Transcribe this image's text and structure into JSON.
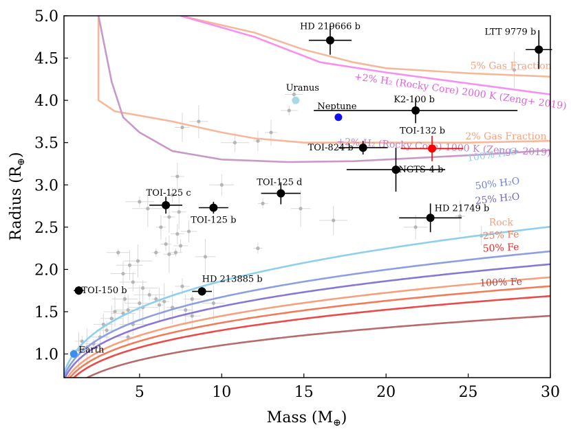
{
  "chart_data": {
    "type": "scatter",
    "xlabel": "Mass (M",
    "xlabel_sub": "⊕",
    "xlabel_close": ")",
    "ylabel": "Radius (R",
    "ylabel_sub": "⊕",
    "ylabel_close": ")",
    "xlim": [
      0.4,
      30
    ],
    "ylim": [
      0.72,
      5.0
    ],
    "xticks": [
      5,
      10,
      15,
      20,
      25,
      30
    ],
    "yticks": [
      1.0,
      1.5,
      2.0,
      2.5,
      3.0,
      3.5,
      4.0,
      4.5,
      5.0
    ],
    "xtick_labels": [
      "5",
      "10",
      "15",
      "20",
      "25",
      "30"
    ],
    "ytick_labels": [
      "1.0",
      "1.5",
      "2.0",
      "2.5",
      "3.0",
      "3.5",
      "4.0",
      "4.5",
      "5.0"
    ],
    "composition_curves": [
      {
        "name": "100% H2O",
        "label": "100% H₂O",
        "color": "#8ecfee",
        "a": 1.0,
        "p": 0.27
      },
      {
        "name": "50% H2O",
        "label": "50% H₂O",
        "color": "#8c9fe0",
        "a": 0.93,
        "p": 0.255
      },
      {
        "name": "25% H2O",
        "label": "25% H₂O",
        "color": "#8a76d4",
        "a": 0.875,
        "p": 0.252
      },
      {
        "name": "Rock",
        "label": "Rock",
        "color": "#f5a17e",
        "a": 0.815,
        "p": 0.25
      },
      {
        "name": "25% Fe",
        "label": "25% Fe",
        "color": "#f07c5a",
        "a": 0.77,
        "p": 0.25
      },
      {
        "name": "50% Fe",
        "label": "50% Fe",
        "color": "#ea4a4a",
        "a": 0.72,
        "p": 0.25
      },
      {
        "name": "100% Fe",
        "label": "100% Fe",
        "color": "#b86a6a",
        "a": 0.62,
        "p": 0.25
      }
    ],
    "gas_curves": [
      {
        "name": "2% Gas Fraction",
        "label": "2% Gas Fraction",
        "color": "#f5b89a",
        "points": [
          [
            2.5,
            5.0
          ],
          [
            2.5,
            4.0
          ],
          [
            3.5,
            3.87
          ],
          [
            5,
            3.82
          ],
          [
            7,
            3.75
          ],
          [
            10,
            3.62
          ],
          [
            12,
            3.55
          ],
          [
            15,
            3.5
          ],
          [
            20,
            3.5
          ],
          [
            25,
            3.5
          ],
          [
            30,
            3.52
          ]
        ]
      },
      {
        "name": "5% Gas Fraction",
        "label": "5% Gas Fraction",
        "color": "#f5b89a",
        "points": [
          [
            7.5,
            5.0
          ],
          [
            12,
            4.8
          ],
          [
            15,
            4.6
          ],
          [
            18,
            4.45
          ],
          [
            20,
            4.38
          ],
          [
            25,
            4.32
          ],
          [
            30,
            4.28
          ]
        ]
      },
      {
        "name": "+2% H2 (Rocky Core) 2000 K (Zeng+ 2019)",
        "label": "+2% H₂ (Rocky Core) 2000 K (Zeng+ 2019)",
        "color": "#f78ff0",
        "points": [
          [
            7.5,
            5.0
          ],
          [
            12,
            4.75
          ],
          [
            14,
            4.6
          ],
          [
            16,
            4.45
          ],
          [
            20,
            4.33
          ],
          [
            25,
            4.2
          ],
          [
            30,
            4.07
          ]
        ]
      },
      {
        "name": "+2% H2 (Rocky Core) 1000 K (Zeng+ 2019)",
        "label": "+2% H₂ (Rocky Core) 1000 K (Zeng+ 2019)",
        "color": "#c998c8",
        "points": [
          [
            2.5,
            5.0
          ],
          [
            3.3,
            4.22
          ],
          [
            4.0,
            3.8
          ],
          [
            5.0,
            3.62
          ],
          [
            7.0,
            3.4
          ],
          [
            10,
            3.3
          ],
          [
            14,
            3.27
          ],
          [
            18,
            3.28
          ],
          [
            22,
            3.32
          ],
          [
            26,
            3.36
          ],
          [
            30,
            3.41
          ]
        ]
      }
    ],
    "named_planets": [
      {
        "name": "HD 219666 b",
        "x": 16.6,
        "y": 4.71,
        "xerr": 1.3,
        "yerr": 0.17,
        "color": "#000000"
      },
      {
        "name": "LTT 9779 b",
        "x": 29.3,
        "y": 4.6,
        "xerr": 0.8,
        "yerr": 0.23,
        "color": "#000000"
      },
      {
        "name": "K2-100 b",
        "x": 21.8,
        "y": 3.88,
        "xerr": 6.2,
        "yerr": 0.15,
        "color": "#000000"
      },
      {
        "name": "TOI-132 b",
        "x": 22.8,
        "y": 3.43,
        "xerr": 1.9,
        "yerr": 0.15,
        "color": "#ff0000"
      },
      {
        "name": "TOI-824 b",
        "x": 18.6,
        "y": 3.44,
        "xerr": 1.5,
        "yerr": 0.08,
        "color": "#000000"
      },
      {
        "name": "NGTS-4 b",
        "x": 20.6,
        "y": 3.18,
        "xerr": 3.0,
        "yerr": 0.26,
        "color": "#000000"
      },
      {
        "name": "TOI-125 c",
        "x": 6.6,
        "y": 2.76,
        "xerr": 1.0,
        "yerr": 0.1,
        "color": "#000000"
      },
      {
        "name": "TOI-125 b",
        "x": 9.5,
        "y": 2.73,
        "xerr": 0.9,
        "yerr": 0.07,
        "color": "#000000"
      },
      {
        "name": "TOI-125 d",
        "x": 13.6,
        "y": 2.9,
        "xerr": 1.2,
        "yerr": 0.13,
        "color": "#000000"
      },
      {
        "name": "HD 21749 b",
        "x": 22.7,
        "y": 2.61,
        "xerr": 1.9,
        "yerr": 0.17,
        "color": "#000000"
      },
      {
        "name": "TOI-150 b",
        "x": 1.3,
        "y": 1.75,
        "xerr": 0.3,
        "yerr": 0.05,
        "color": "#000000"
      },
      {
        "name": "HD 213885 b",
        "x": 8.8,
        "y": 1.74,
        "xerr": 0.6,
        "yerr": 0.05,
        "color": "#000000"
      }
    ],
    "solar_system": [
      {
        "name": "Uranus",
        "x": 14.5,
        "y": 4.0,
        "color": "#a8d8e8"
      },
      {
        "name": "Neptune",
        "x": 17.1,
        "y": 3.8,
        "color": "#1010ee"
      },
      {
        "name": "Earth",
        "x": 1.0,
        "y": 1.0,
        "color": "#3b8df0"
      }
    ],
    "background_planets": [
      [
        14.4,
        4.07
      ],
      [
        14.1,
        3.88
      ],
      [
        13.0,
        3.62
      ],
      [
        10.8,
        3.5
      ],
      [
        7.6,
        3.68
      ],
      [
        8.6,
        3.75
      ],
      [
        12.2,
        3.52
      ],
      [
        21.8,
        2.5
      ],
      [
        24.5,
        2.63
      ],
      [
        25.8,
        2.4
      ],
      [
        16.8,
        2.58
      ],
      [
        14.8,
        2.72
      ],
      [
        12.5,
        2.78
      ],
      [
        10.0,
        3.0
      ],
      [
        7.3,
        3.1
      ],
      [
        7.0,
        2.88
      ],
      [
        6.3,
        2.5
      ],
      [
        5.0,
        2.8
      ],
      [
        5.5,
        2.72
      ],
      [
        8.0,
        2.45
      ],
      [
        7.3,
        2.42
      ],
      [
        7.5,
        2.28
      ],
      [
        7.2,
        2.2
      ],
      [
        6.8,
        2.18
      ],
      [
        6.6,
        2.3
      ],
      [
        6.0,
        2.2
      ],
      [
        12.2,
        2.25
      ],
      [
        9.0,
        2.15
      ],
      [
        4.9,
        2.1
      ],
      [
        4.4,
        2.05
      ],
      [
        3.7,
        2.2
      ],
      [
        4.0,
        1.95
      ],
      [
        4.6,
        1.85
      ],
      [
        5.2,
        1.78
      ],
      [
        5.6,
        1.7
      ],
      [
        6.0,
        1.65
      ],
      [
        6.5,
        1.62
      ],
      [
        5.0,
        1.6
      ],
      [
        4.1,
        1.65
      ],
      [
        3.5,
        1.5
      ],
      [
        4.0,
        1.48
      ],
      [
        4.3,
        1.52
      ],
      [
        4.6,
        1.35
      ],
      [
        5.2,
        1.55
      ],
      [
        6.2,
        1.58
      ],
      [
        7.0,
        1.55
      ],
      [
        7.8,
        1.52
      ],
      [
        8.2,
        1.45
      ],
      [
        9.5,
        1.6
      ],
      [
        3.0,
        1.28
      ],
      [
        2.6,
        1.2
      ],
      [
        2.2,
        1.12
      ],
      [
        1.8,
        1.08
      ],
      [
        1.5,
        1.15
      ],
      [
        1.3,
        1.05
      ],
      [
        2.8,
        1.35
      ],
      [
        3.3,
        1.42
      ],
      [
        7.6,
        1.8
      ],
      [
        8.2,
        1.65
      ],
      [
        4.3,
        1.2
      ],
      [
        27.8,
        4.36
      ],
      [
        6.8,
        2.62
      ],
      [
        7.4,
        2.68
      ]
    ],
    "annotations": [
      {
        "text": "100% H₂O",
        "x": 26.5,
        "y": 3.32,
        "color": "#8ecfee",
        "size": 15,
        "rotate": -8
      },
      {
        "text": "50% H₂O",
        "x": 26.8,
        "y": 2.98,
        "color": "#6f84d8",
        "size": 15,
        "rotate": -7
      },
      {
        "text": "25% H₂O",
        "x": 26.8,
        "y": 2.8,
        "color": "#7a62c8",
        "size": 15,
        "rotate": -6
      },
      {
        "text": "Rock",
        "x": 27.0,
        "y": 2.52,
        "color": "#f5a17e",
        "size": 14,
        "rotate": 0
      },
      {
        "text": "25% Fe",
        "x": 27.0,
        "y": 2.37,
        "color": "#f07c5a",
        "size": 14,
        "rotate": -3
      },
      {
        "text": "50% Fe",
        "x": 27.0,
        "y": 2.22,
        "color": "#e52c2c",
        "size": 14,
        "rotate": -3
      },
      {
        "text": "100% Fe",
        "x": 27.0,
        "y": 1.81,
        "color": "#a84848",
        "size": 14,
        "rotate": -2
      },
      {
        "text": "5% Gas Fraction",
        "x": 27.6,
        "y": 4.37,
        "color": "#f5a17e",
        "size": 12,
        "rotate": 0
      },
      {
        "text": "2% Gas Fraction",
        "x": 27.3,
        "y": 3.54,
        "color": "#f5a17e",
        "size": 12,
        "rotate": 0
      },
      {
        "text": "+2% H₂ (Rocky Core) 2000 K (Zeng+ 2019)",
        "x": 24.5,
        "y": 4.07,
        "color": "#e45fe0",
        "size": 11,
        "rotate": 8
      },
      {
        "text": "+2% H₂ (Rocky Core) 1000 K (Zeng+ 2019)",
        "x": 23.5,
        "y": 3.41,
        "color": "#c080c0",
        "size": 11,
        "rotate": 3
      }
    ]
  }
}
